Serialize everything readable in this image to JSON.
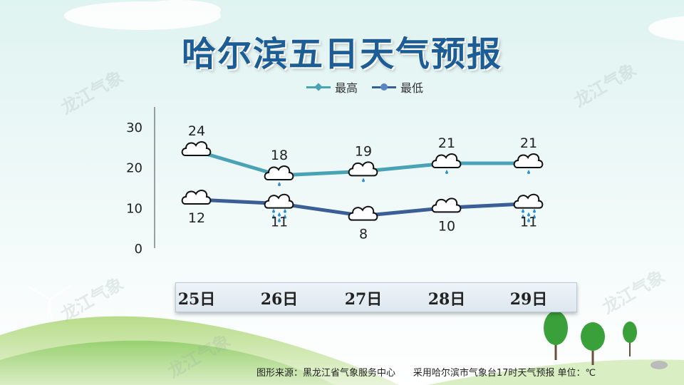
{
  "title": "哈尔滨五日天气预报",
  "legend": {
    "high": "最高",
    "low": "最低"
  },
  "watermark": "龙江气象",
  "footer": {
    "source": "图形来源：黑龙江省气象服务中心",
    "note": "采用哈尔滨市气象台17时天气预报 单位：℃"
  },
  "colors": {
    "high_line": "#4aa3b5",
    "low_line": "#3b5e96",
    "title": "#1c5d96"
  },
  "chart_data": {
    "type": "line",
    "categories": [
      "25日",
      "26日",
      "27日",
      "28日",
      "29日"
    ],
    "series": [
      {
        "name": "最高",
        "values": [
          24,
          18,
          19,
          21,
          21
        ],
        "icons": [
          "cloudy",
          "light-rain",
          "light-rain",
          "light-rain",
          "light-rain"
        ]
      },
      {
        "name": "最低",
        "values": [
          12,
          11,
          8,
          10,
          11
        ],
        "icons": [
          "cloudy",
          "moderate-rain",
          "cloudy",
          "cloudy",
          "moderate-rain"
        ]
      }
    ],
    "yticks": [
      0,
      10,
      20,
      30
    ],
    "ylim": [
      0,
      30
    ],
    "grid": false,
    "legend_position": "top-center"
  }
}
